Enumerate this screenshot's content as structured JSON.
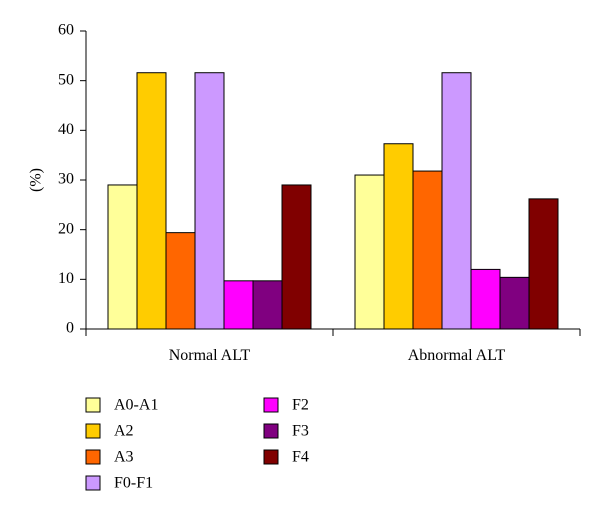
{
  "chart_data": {
    "type": "bar",
    "title": "",
    "xlabel": "",
    "ylabel": "(%)",
    "ylim": [
      0,
      60
    ],
    "yticks": [
      0,
      10,
      20,
      30,
      40,
      50,
      60
    ],
    "grid": false,
    "legend_position": "bottom-left",
    "categories": [
      "Normal ALT",
      "Abnormal ALT"
    ],
    "series": [
      {
        "name": "A0-A1",
        "color": "#ffff99",
        "values": [
          29,
          31
        ]
      },
      {
        "name": "A2",
        "color": "#ffcc00",
        "values": [
          51.6,
          37.3
        ]
      },
      {
        "name": "A3",
        "color": "#ff6600",
        "values": [
          19.4,
          31.8
        ]
      },
      {
        "name": "F0-F1",
        "color": "#cc99ff",
        "values": [
          51.6,
          51.6
        ]
      },
      {
        "name": "F2",
        "color": "#ff00ff",
        "values": [
          9.7,
          12
        ]
      },
      {
        "name": "F3",
        "color": "#800080",
        "values": [
          9.7,
          10.4
        ]
      },
      {
        "name": "F4",
        "color": "#800000",
        "values": [
          29,
          26.2
        ]
      }
    ]
  }
}
